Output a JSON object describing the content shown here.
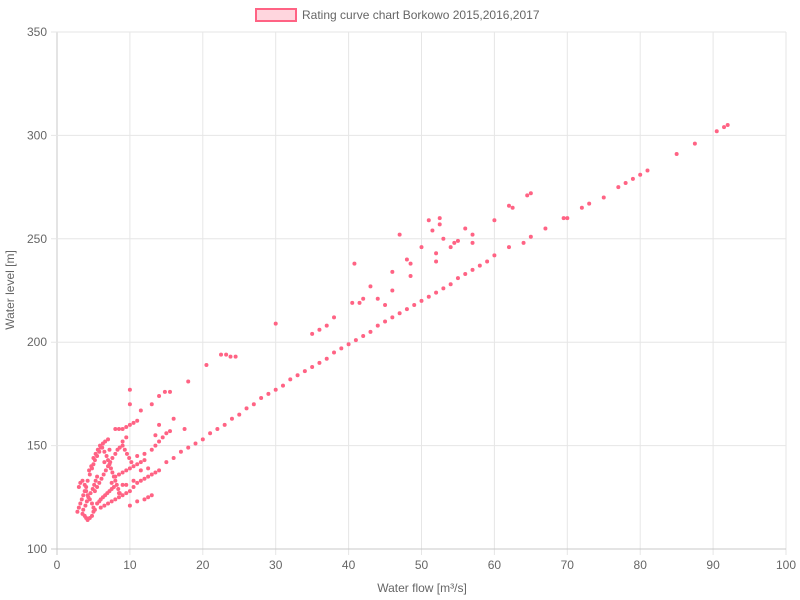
{
  "chart_data": {
    "type": "scatter",
    "title": "",
    "xlabel": "Water flow [m³/s]",
    "ylabel": "Water level [m]",
    "xlim": [
      0,
      100
    ],
    "ylim": [
      100,
      350
    ],
    "x_ticks": [
      0,
      10,
      20,
      30,
      40,
      50,
      60,
      70,
      80,
      90,
      100
    ],
    "y_ticks": [
      100,
      150,
      200,
      250,
      300,
      350
    ],
    "grid": true,
    "legend_position": "top",
    "point_color": "#ff6384",
    "point_fill": "#ff6384",
    "legend_fill": "#ffd6de",
    "series": [
      {
        "name": "Rating curve chart Borkowo 2015,2016,2017",
        "points": [
          [
            2.8,
            118
          ],
          [
            3.0,
            120
          ],
          [
            3.2,
            122
          ],
          [
            3.4,
            124
          ],
          [
            3.6,
            126
          ],
          [
            3.8,
            128
          ],
          [
            4.0,
            130
          ],
          [
            4.2,
            133
          ],
          [
            4.5,
            136
          ],
          [
            4.8,
            139
          ],
          [
            5.0,
            141
          ],
          [
            5.2,
            143
          ],
          [
            5.5,
            145
          ],
          [
            5.8,
            147
          ],
          [
            6.0,
            149
          ],
          [
            6.3,
            151
          ],
          [
            6.6,
            152
          ],
          [
            7.0,
            153
          ],
          [
            3.0,
            130
          ],
          [
            3.2,
            132
          ],
          [
            3.5,
            133
          ],
          [
            3.8,
            131
          ],
          [
            4.0,
            128
          ],
          [
            4.2,
            126
          ],
          [
            4.5,
            124
          ],
          [
            4.8,
            122
          ],
          [
            5.0,
            120
          ],
          [
            3.5,
            117
          ],
          [
            3.8,
            116
          ],
          [
            4.0,
            115
          ],
          [
            4.2,
            114
          ],
          [
            4.5,
            115
          ],
          [
            4.8,
            116
          ],
          [
            5.0,
            118
          ],
          [
            5.2,
            119
          ],
          [
            3.6,
            119
          ],
          [
            3.9,
            121
          ],
          [
            4.1,
            123
          ],
          [
            4.3,
            125
          ],
          [
            4.6,
            127
          ],
          [
            4.9,
            129
          ],
          [
            5.1,
            131
          ],
          [
            5.3,
            133
          ],
          [
            5.5,
            135
          ],
          [
            4.4,
            138
          ],
          [
            4.7,
            140
          ],
          [
            5.0,
            144
          ],
          [
            5.3,
            146
          ],
          [
            5.6,
            148
          ],
          [
            5.9,
            150
          ],
          [
            6.2,
            149
          ],
          [
            6.5,
            147
          ],
          [
            6.8,
            145
          ],
          [
            7.0,
            143
          ],
          [
            7.2,
            141
          ],
          [
            7.4,
            139
          ],
          [
            7.6,
            137
          ],
          [
            7.8,
            135
          ],
          [
            8.0,
            133
          ],
          [
            8.2,
            131
          ],
          [
            8.4,
            129
          ],
          [
            8.6,
            127
          ],
          [
            5.5,
            122
          ],
          [
            5.8,
            123
          ],
          [
            6.0,
            124
          ],
          [
            6.3,
            125
          ],
          [
            6.6,
            126
          ],
          [
            6.9,
            127
          ],
          [
            7.2,
            128
          ],
          [
            7.5,
            129
          ],
          [
            7.8,
            130
          ],
          [
            5.2,
            128
          ],
          [
            5.5,
            130
          ],
          [
            5.8,
            132
          ],
          [
            6.1,
            134
          ],
          [
            6.4,
            136
          ],
          [
            6.7,
            138
          ],
          [
            7.0,
            140
          ],
          [
            7.3,
            142
          ],
          [
            7.6,
            144
          ],
          [
            8.0,
            146
          ],
          [
            8.3,
            148
          ],
          [
            8.6,
            149
          ],
          [
            9.0,
            150
          ],
          [
            9.3,
            148
          ],
          [
            9.6,
            146
          ],
          [
            9.9,
            144
          ],
          [
            10.2,
            142
          ],
          [
            6.0,
            120
          ],
          [
            6.5,
            121
          ],
          [
            7.0,
            122
          ],
          [
            7.5,
            123
          ],
          [
            8.0,
            124
          ],
          [
            8.5,
            125
          ],
          [
            9.0,
            126
          ],
          [
            9.5,
            127
          ],
          [
            10.0,
            128
          ],
          [
            8.0,
            135
          ],
          [
            8.5,
            136
          ],
          [
            9.0,
            137
          ],
          [
            9.5,
            138
          ],
          [
            10.0,
            139
          ],
          [
            10.5,
            140
          ],
          [
            11.0,
            141
          ],
          [
            11.5,
            142
          ],
          [
            12.0,
            143
          ],
          [
            10.5,
            130
          ],
          [
            11.0,
            132
          ],
          [
            11.5,
            133
          ],
          [
            12.0,
            134
          ],
          [
            12.5,
            135
          ],
          [
            13.0,
            136
          ],
          [
            13.5,
            137
          ],
          [
            14.0,
            138
          ],
          [
            8.0,
            158
          ],
          [
            8.5,
            158
          ],
          [
            9.0,
            158
          ],
          [
            9.5,
            159
          ],
          [
            10.0,
            160
          ],
          [
            10.5,
            161
          ],
          [
            11.0,
            162
          ],
          [
            13.0,
            148
          ],
          [
            13.5,
            150
          ],
          [
            14.0,
            152
          ],
          [
            14.5,
            154
          ],
          [
            15.0,
            156
          ],
          [
            15.5,
            157
          ],
          [
            14.0,
            160
          ],
          [
            13.5,
            155
          ],
          [
            11.5,
            167
          ],
          [
            13.0,
            170
          ],
          [
            14.0,
            174
          ],
          [
            14.8,
            176
          ],
          [
            15.5,
            176
          ],
          [
            10.0,
            170
          ],
          [
            10.0,
            177
          ],
          [
            16.0,
            163
          ],
          [
            17.5,
            158
          ],
          [
            18.0,
            181
          ],
          [
            20.5,
            189
          ],
          [
            22.5,
            194
          ],
          [
            23.2,
            194
          ],
          [
            23.8,
            193
          ],
          [
            24.5,
            193
          ],
          [
            30.0,
            209
          ],
          [
            15.0,
            142
          ],
          [
            16.0,
            144
          ],
          [
            17.0,
            147
          ],
          [
            18.0,
            149
          ],
          [
            19.0,
            151
          ],
          [
            20.0,
            153
          ],
          [
            21.0,
            156
          ],
          [
            22.0,
            158
          ],
          [
            23.0,
            160
          ],
          [
            24.0,
            163
          ],
          [
            25.0,
            165
          ],
          [
            26.0,
            168
          ],
          [
            27.0,
            170
          ],
          [
            28.0,
            173
          ],
          [
            29.0,
            175
          ],
          [
            30.0,
            177
          ],
          [
            31.0,
            179
          ],
          [
            32.0,
            182
          ],
          [
            33.0,
            184
          ],
          [
            34.0,
            186
          ],
          [
            35.0,
            188
          ],
          [
            36.0,
            190
          ],
          [
            37.0,
            192
          ],
          [
            38.0,
            195
          ],
          [
            39.0,
            197
          ],
          [
            40.0,
            199
          ],
          [
            41.0,
            201
          ],
          [
            42.0,
            203
          ],
          [
            43.0,
            205
          ],
          [
            44.0,
            208
          ],
          [
            45.0,
            210
          ],
          [
            46.0,
            212
          ],
          [
            47.0,
            214
          ],
          [
            48.0,
            216
          ],
          [
            49.0,
            218
          ],
          [
            50.0,
            220
          ],
          [
            51.0,
            222
          ],
          [
            52.0,
            224
          ],
          [
            53.0,
            226
          ],
          [
            54.0,
            228
          ],
          [
            55.0,
            231
          ],
          [
            56.0,
            233
          ],
          [
            57.0,
            235
          ],
          [
            58.0,
            237
          ],
          [
            59.0,
            239
          ],
          [
            60.0,
            242
          ],
          [
            62.0,
            246
          ],
          [
            64.0,
            248
          ],
          [
            65.0,
            251
          ],
          [
            67.0,
            255
          ],
          [
            70.0,
            260
          ],
          [
            72.0,
            265
          ],
          [
            73.0,
            267
          ],
          [
            77.0,
            275
          ],
          [
            78.0,
            277
          ],
          [
            79.0,
            279
          ],
          [
            80.0,
            281
          ],
          [
            81.0,
            283
          ],
          [
            85.0,
            291
          ],
          [
            87.5,
            296
          ],
          [
            90.5,
            302
          ],
          [
            91.5,
            304
          ],
          [
            92.0,
            305
          ],
          [
            35.0,
            204
          ],
          [
            36.0,
            206
          ],
          [
            37.0,
            208
          ],
          [
            38.0,
            212
          ],
          [
            40.5,
            219
          ],
          [
            41.5,
            219
          ],
          [
            40.8,
            238
          ],
          [
            42.0,
            221
          ],
          [
            43.0,
            227
          ],
          [
            44.0,
            221
          ],
          [
            45.0,
            218
          ],
          [
            46.0,
            225
          ],
          [
            46.0,
            234
          ],
          [
            47.0,
            252
          ],
          [
            48.0,
            240
          ],
          [
            48.5,
            238
          ],
          [
            48.5,
            232
          ],
          [
            50.0,
            246
          ],
          [
            51.0,
            259
          ],
          [
            51.5,
            254
          ],
          [
            52.0,
            243
          ],
          [
            52.0,
            239
          ],
          [
            52.5,
            260
          ],
          [
            52.5,
            257
          ],
          [
            53.0,
            250
          ],
          [
            54.0,
            246
          ],
          [
            54.5,
            248
          ],
          [
            55.0,
            249
          ],
          [
            56.0,
            255
          ],
          [
            57.0,
            252
          ],
          [
            57.0,
            248
          ],
          [
            60.0,
            259
          ],
          [
            62.0,
            266
          ],
          [
            62.5,
            265
          ],
          [
            64.5,
            271
          ],
          [
            65.0,
            272
          ],
          [
            69.5,
            260
          ],
          [
            75.0,
            270
          ],
          [
            10.0,
            121
          ],
          [
            11.0,
            123
          ],
          [
            12.0,
            124
          ],
          [
            12.5,
            125
          ],
          [
            13.0,
            126
          ],
          [
            9.0,
            131
          ],
          [
            9.5,
            131
          ],
          [
            10.5,
            133
          ],
          [
            8.5,
            127
          ],
          [
            7.5,
            132
          ],
          [
            6.5,
            142
          ],
          [
            7.2,
            148
          ],
          [
            9.0,
            152
          ],
          [
            9.5,
            154
          ],
          [
            11.0,
            145
          ],
          [
            12.0,
            146
          ],
          [
            11.5,
            138
          ],
          [
            12.5,
            139
          ]
        ]
      }
    ]
  }
}
